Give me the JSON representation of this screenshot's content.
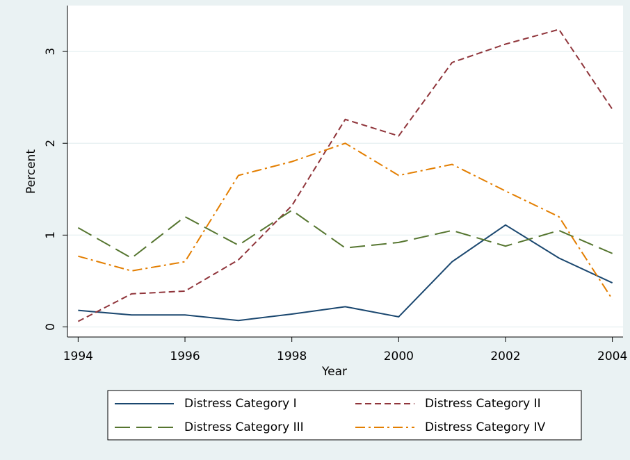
{
  "chart_data": {
    "type": "line",
    "x_label": "Year",
    "y_label": "Percent",
    "x": [
      1994,
      1995,
      1996,
      1997,
      1998,
      1999,
      2000,
      2001,
      2002,
      2003,
      2004
    ],
    "series": [
      {
        "name": "Distress Category I",
        "color": "#1a476f",
        "dash": "solid",
        "values": [
          0.18,
          0.13,
          0.13,
          0.07,
          0.14,
          0.22,
          0.11,
          0.71,
          1.11,
          0.75,
          0.48
        ]
      },
      {
        "name": "Distress Category II",
        "color": "#90353b",
        "dash": "dash",
        "values": [
          0.06,
          0.36,
          0.39,
          0.73,
          1.32,
          2.26,
          2.08,
          2.88,
          3.08,
          3.24,
          2.37
        ]
      },
      {
        "name": "Distress Category III",
        "color": "#55752f",
        "dash": "longdash",
        "values": [
          1.08,
          0.75,
          1.2,
          0.89,
          1.27,
          0.86,
          0.92,
          1.05,
          0.88,
          1.05,
          0.8
        ]
      },
      {
        "name": "Distress Category IV",
        "color": "#e37e00",
        "dash": "dashdot",
        "values": [
          0.77,
          0.61,
          0.71,
          1.65,
          1.8,
          2.0,
          1.65,
          1.77,
          1.48,
          1.2,
          0.3
        ]
      }
    ],
    "xlim": [
      1993.8,
      2004.2
    ],
    "xticks": [
      1994,
      1996,
      1998,
      2000,
      2002,
      2004
    ],
    "ylim": [
      -0.11,
      3.5
    ],
    "yticks": [
      0,
      1,
      2,
      3
    ],
    "grid": true,
    "legend": "bottom"
  }
}
